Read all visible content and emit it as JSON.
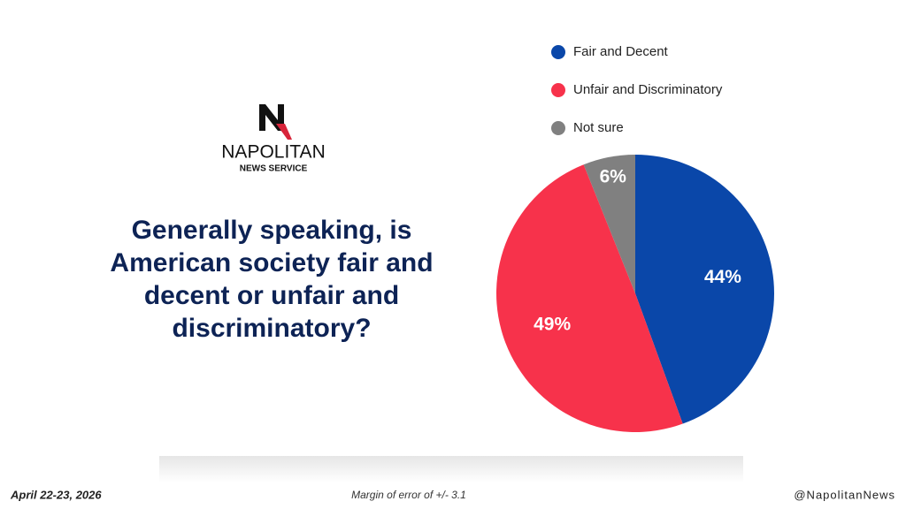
{
  "logo": {
    "name": "NAPOLITAN",
    "tagline": "NEWS SERVICE"
  },
  "chart_data": {
    "type": "pie",
    "title": "Generally speaking, is American society fair and decent or unfair and discriminatory?",
    "categories": [
      "Fair and Decent",
      "Unfair and Discriminatory",
      "Not sure"
    ],
    "values": [
      44,
      49,
      6
    ],
    "value_labels": [
      "44%",
      "49%",
      "6%"
    ],
    "colors": [
      "#0a47a9",
      "#f7324b",
      "#808080"
    ]
  },
  "footer": {
    "date": "April 22-23, 2026",
    "margin": "Margin of error of +/- 3.1",
    "handle": "@NapolitanNews"
  }
}
